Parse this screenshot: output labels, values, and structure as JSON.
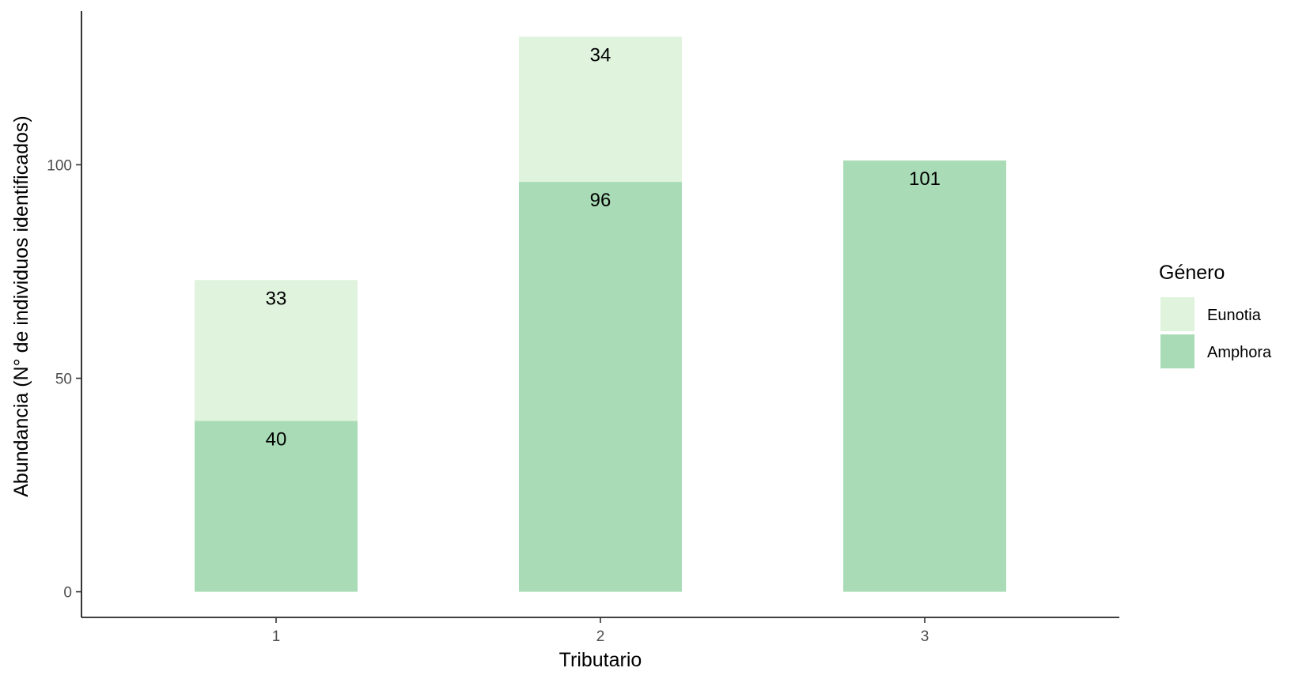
{
  "chart_data": {
    "type": "bar",
    "stacked": true,
    "categories": [
      "1",
      "2",
      "3"
    ],
    "series": [
      {
        "name": "Amphora",
        "values": [
          40,
          96,
          101
        ],
        "color": "#a9dcb6"
      },
      {
        "name": "Eunotia",
        "values": [
          33,
          34,
          null
        ],
        "color": "#dff3dd"
      }
    ],
    "data_labels": {
      "Amphora": [
        "40",
        "96",
        "101"
      ],
      "Eunotia": [
        "33",
        "34",
        ""
      ]
    },
    "xlabel": "Tributario",
    "ylabel": "Abundancia (N° de individuos identificados)",
    "ylim": [
      -6,
      136
    ],
    "yticks": [
      0,
      50,
      100
    ],
    "ytick_labels": [
      "0",
      "50",
      "100"
    ],
    "legend": {
      "title": "Género",
      "position": "right",
      "entries": [
        "Eunotia",
        "Amphora"
      ]
    },
    "grid": false
  }
}
